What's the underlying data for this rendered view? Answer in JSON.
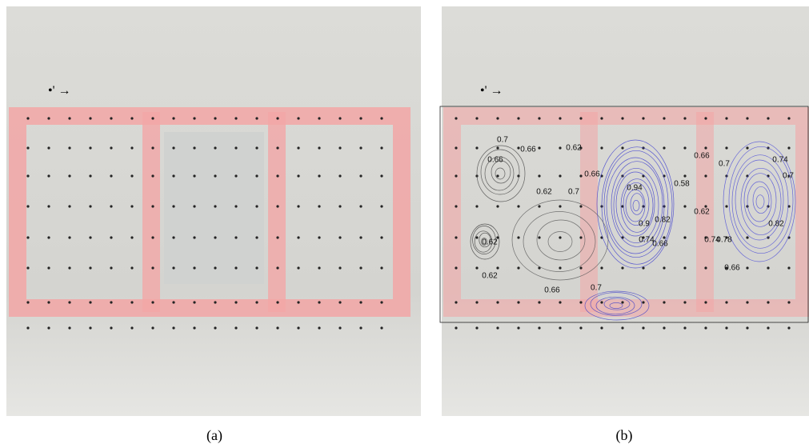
{
  "panels": [
    {
      "label": "(a)"
    },
    {
      "label": "(b)",
      "contour_labels": [
        "0.7",
        "0.66",
        "0.62",
        "0.66",
        "0.62",
        "0.7",
        "0.66",
        "0.94",
        "0.58",
        "0.66",
        "0.7",
        "0.74",
        "0.7",
        "0.62",
        "0.9",
        "0.82",
        "0.74",
        "0.66",
        "0.82",
        "0.74",
        "0.78",
        "0.62",
        "0.62",
        "0.66",
        "0.7",
        "0.66"
      ]
    }
  ]
}
